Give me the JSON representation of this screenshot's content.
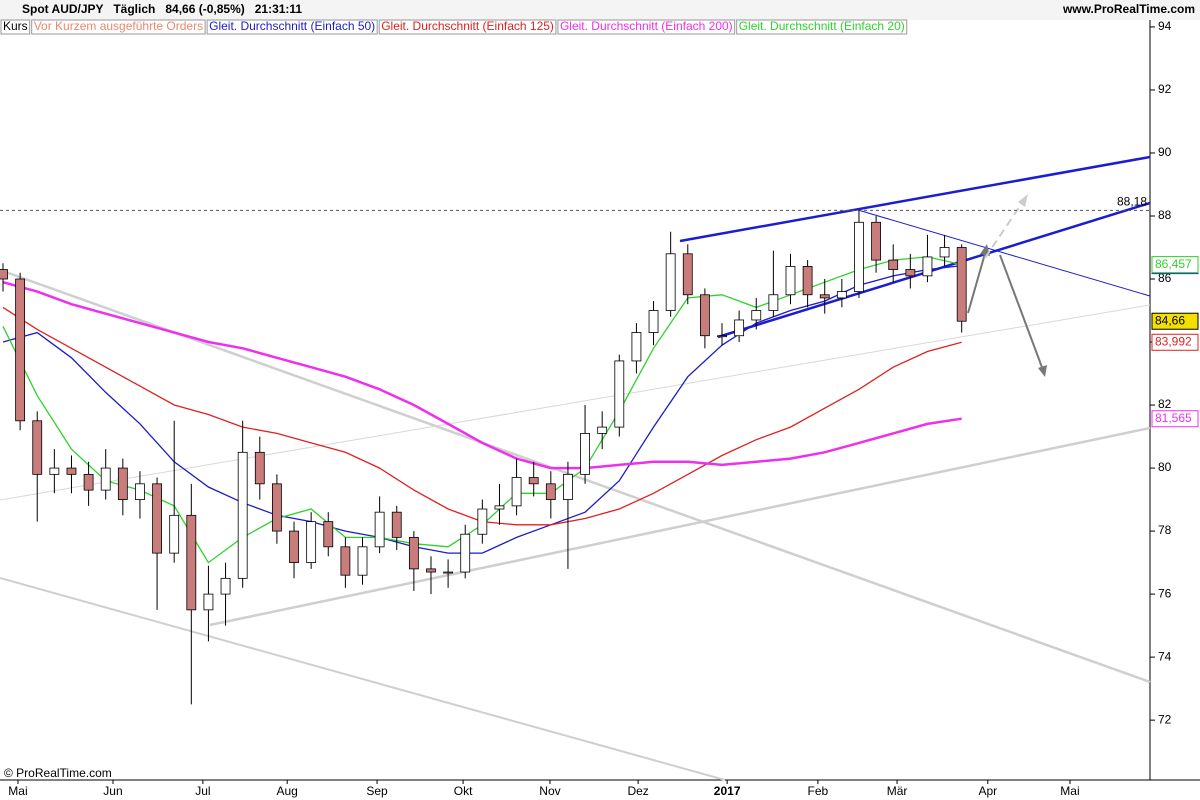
{
  "chart_data": {
    "type": "candlestick",
    "title": "Spot AUD/JPY   Täglich   84,66 (-0,85%)   21:31:11",
    "source": "www.ProRealTime.com",
    "copyright": "© ProRealTime.com",
    "legend": [
      {
        "name": "Kurs",
        "color": "#000000"
      },
      {
        "name": "Vor Kurzem ausgeführte Orders",
        "color": "#e9876f"
      }
    ],
    "ylim": [
      70.1,
      94.22
    ],
    "yticks": [
      72,
      74,
      76,
      78,
      80,
      82,
      84,
      86,
      88,
      90,
      92,
      94
    ],
    "xlim": [
      -0.7,
      268
    ],
    "xticks": [
      {
        "value": 3.5,
        "label": "Mai"
      },
      {
        "value": 25.7,
        "label": "Jun"
      },
      {
        "value": 46.7,
        "label": "Jul"
      },
      {
        "value": 66.4,
        "label": "Aug"
      },
      {
        "value": 87.4,
        "label": "Sep"
      },
      {
        "value": 107.5,
        "label": "Okt"
      },
      {
        "value": 127.8,
        "label": "Nov"
      },
      {
        "value": 148.4,
        "label": "Dez"
      },
      {
        "value": 169.2,
        "label": "2017"
      },
      {
        "value": 190.4,
        "label": "Feb"
      },
      {
        "value": 208.9,
        "label": "Mär"
      },
      {
        "value": 230.1,
        "label": "Apr"
      },
      {
        "value": 249.3,
        "label": "Mai"
      }
    ],
    "up_color": "#ffffff",
    "down_color": "#c97c7c",
    "candles": {
      "x": [
        0,
        4,
        8,
        12,
        16,
        20,
        24,
        28,
        32,
        36,
        40,
        44,
        48,
        52,
        56,
        60,
        64,
        68,
        72,
        76,
        80,
        84,
        88,
        92,
        96,
        100,
        104,
        108,
        112,
        116,
        120,
        124,
        128,
        132,
        136,
        140,
        144,
        148,
        152,
        156,
        160,
        164,
        168,
        172,
        176,
        180,
        184,
        188,
        192,
        196,
        200,
        204,
        208,
        212,
        216,
        220,
        224
      ],
      "open": [
        86.3,
        86.0,
        81.5,
        79.8,
        80,
        79.8,
        79.3,
        80,
        79,
        79.5,
        77.3,
        78.5,
        75.5,
        76,
        76.5,
        80.5,
        79.5,
        78,
        77,
        78.3,
        77.5,
        76.6,
        77.5,
        78.6,
        77.8,
        76.8,
        76.7,
        76.7,
        77.9,
        78.7,
        78.8,
        79.7,
        79.5,
        79,
        79.8,
        81.1,
        81.3,
        83.4,
        84.3,
        85,
        86.8,
        85.5,
        84.2,
        84.2,
        84.7,
        85,
        85.5,
        86.4,
        85.5,
        85.4,
        85.6,
        87.8,
        86.6,
        86.3,
        86.1,
        86.7,
        87
      ],
      "high": [
        86.5,
        86.2,
        81.8,
        80.6,
        80.4,
        80.2,
        80.6,
        80.3,
        79.9,
        79.7,
        81.5,
        79.5,
        76.9,
        77.0,
        81.5,
        81.0,
        79.8,
        78.3,
        78.6,
        78.6,
        77.8,
        77.8,
        79.1,
        78.8,
        78.0,
        77.2,
        77.1,
        78.2,
        79.0,
        79.5,
        80.3,
        80.2,
        79.9,
        80.2,
        82.0,
        81.8,
        83.6,
        84.6,
        85.3,
        87.5,
        87.1,
        85.7,
        84.6,
        85.0,
        85.4,
        86.9,
        86.8,
        86.6,
        86.0,
        86.0,
        88.18,
        88.0,
        87.1,
        86.8,
        87.4,
        87.4,
        87.1
      ],
      "low": [
        85.6,
        81.2,
        78.3,
        79.2,
        79.2,
        78.8,
        79.0,
        78.5,
        78.4,
        75.5,
        77.0,
        72.5,
        74.5,
        75.0,
        76.2,
        79.0,
        77.6,
        76.5,
        76.8,
        77.2,
        76.2,
        76.3,
        77.3,
        77.4,
        76.1,
        76.0,
        76.2,
        76.5,
        77.6,
        78.2,
        78.5,
        79.1,
        78.4,
        76.8,
        79.5,
        80.6,
        81.0,
        83.0,
        83.9,
        84.8,
        85.2,
        83.8,
        83.9,
        84.0,
        84.4,
        84.8,
        85.2,
        85.1,
        84.9,
        85.1,
        85.4,
        86.2,
        85.9,
        85.7,
        85.9,
        86.4,
        84.3
      ],
      "close": [
        86.0,
        81.5,
        79.8,
        80,
        79.8,
        79.3,
        80,
        79,
        79.5,
        77.3,
        78.5,
        75.5,
        76,
        76.5,
        80.5,
        79.5,
        78,
        77,
        78.3,
        77.5,
        76.6,
        77.5,
        78.6,
        77.8,
        76.8,
        76.7,
        76.7,
        77.9,
        78.7,
        78.8,
        79.7,
        79.5,
        79,
        79.8,
        81.1,
        81.3,
        83.4,
        84.3,
        85,
        86.8,
        85.5,
        84.2,
        84.2,
        84.7,
        85,
        85.5,
        86.4,
        85.5,
        85.4,
        85.6,
        87.8,
        86.6,
        86.3,
        86.1,
        86.7,
        87,
        84.66
      ],
      "last_label": "84,66"
    },
    "level": {
      "value": 88.18,
      "label": "88,18"
    },
    "line_x": [
      0,
      8,
      16,
      24,
      32,
      40,
      48,
      56,
      64,
      72,
      80,
      88,
      96,
      104,
      112,
      120,
      128,
      136,
      144,
      152,
      160,
      168,
      176,
      184,
      192,
      200,
      208,
      216,
      224
    ],
    "series": [
      {
        "name": "Gleit. Durchschnitt (Einfach 50)",
        "color": "#1c1cc8",
        "last_label": "86,425",
        "values": [
          84,
          84.3,
          83.5,
          82.4,
          81.4,
          80.2,
          79.4,
          78.9,
          78.5,
          78.3,
          78.0,
          77.8,
          77.5,
          77.3,
          77.3,
          77.8,
          78.2,
          78.6,
          79.6,
          81.3,
          82.9,
          83.9,
          84.6,
          85.0,
          85.3,
          85.8,
          86.1,
          86.3,
          86.425
        ]
      },
      {
        "name": "Gleit. Durchschnitt (Einfach 125)",
        "color": "#e02020",
        "last_label": "83,992",
        "values": [
          85.1,
          84.4,
          83.8,
          83.2,
          82.6,
          82.0,
          81.7,
          81.3,
          81.1,
          80.8,
          80.5,
          80.0,
          79.3,
          78.7,
          78.3,
          78.2,
          78.2,
          78.4,
          78.7,
          79.2,
          79.8,
          80.4,
          80.9,
          81.3,
          81.9,
          82.5,
          83.2,
          83.7,
          83.992
        ]
      },
      {
        "name": "Gleit. Durchschnitt (Einfach 200)",
        "color": "#ee30ee",
        "last_label": "81,565",
        "values": [
          85.9,
          85.6,
          85.2,
          84.9,
          84.6,
          84.3,
          84.0,
          83.8,
          83.5,
          83.2,
          82.9,
          82.5,
          82.0,
          81.4,
          80.8,
          80.3,
          80.0,
          80.0,
          80.1,
          80.2,
          80.2,
          80.1,
          80.2,
          80.3,
          80.5,
          80.8,
          81.1,
          81.4,
          81.565
        ]
      },
      {
        "name": "Gleit. Durchschnitt (Einfach 20)",
        "color": "#2ed12e",
        "last_label": "86,457",
        "values": [
          84.5,
          82.3,
          80.6,
          79.6,
          79.3,
          78.8,
          77,
          77.8,
          78.4,
          78.7,
          77.8,
          77.8,
          77.6,
          77.5,
          78.2,
          79.2,
          79.2,
          80,
          81.8,
          83.8,
          85.4,
          85.5,
          85.1,
          85.5,
          85.9,
          86.3,
          86.6,
          86.7,
          86.457
        ]
      }
    ]
  }
}
